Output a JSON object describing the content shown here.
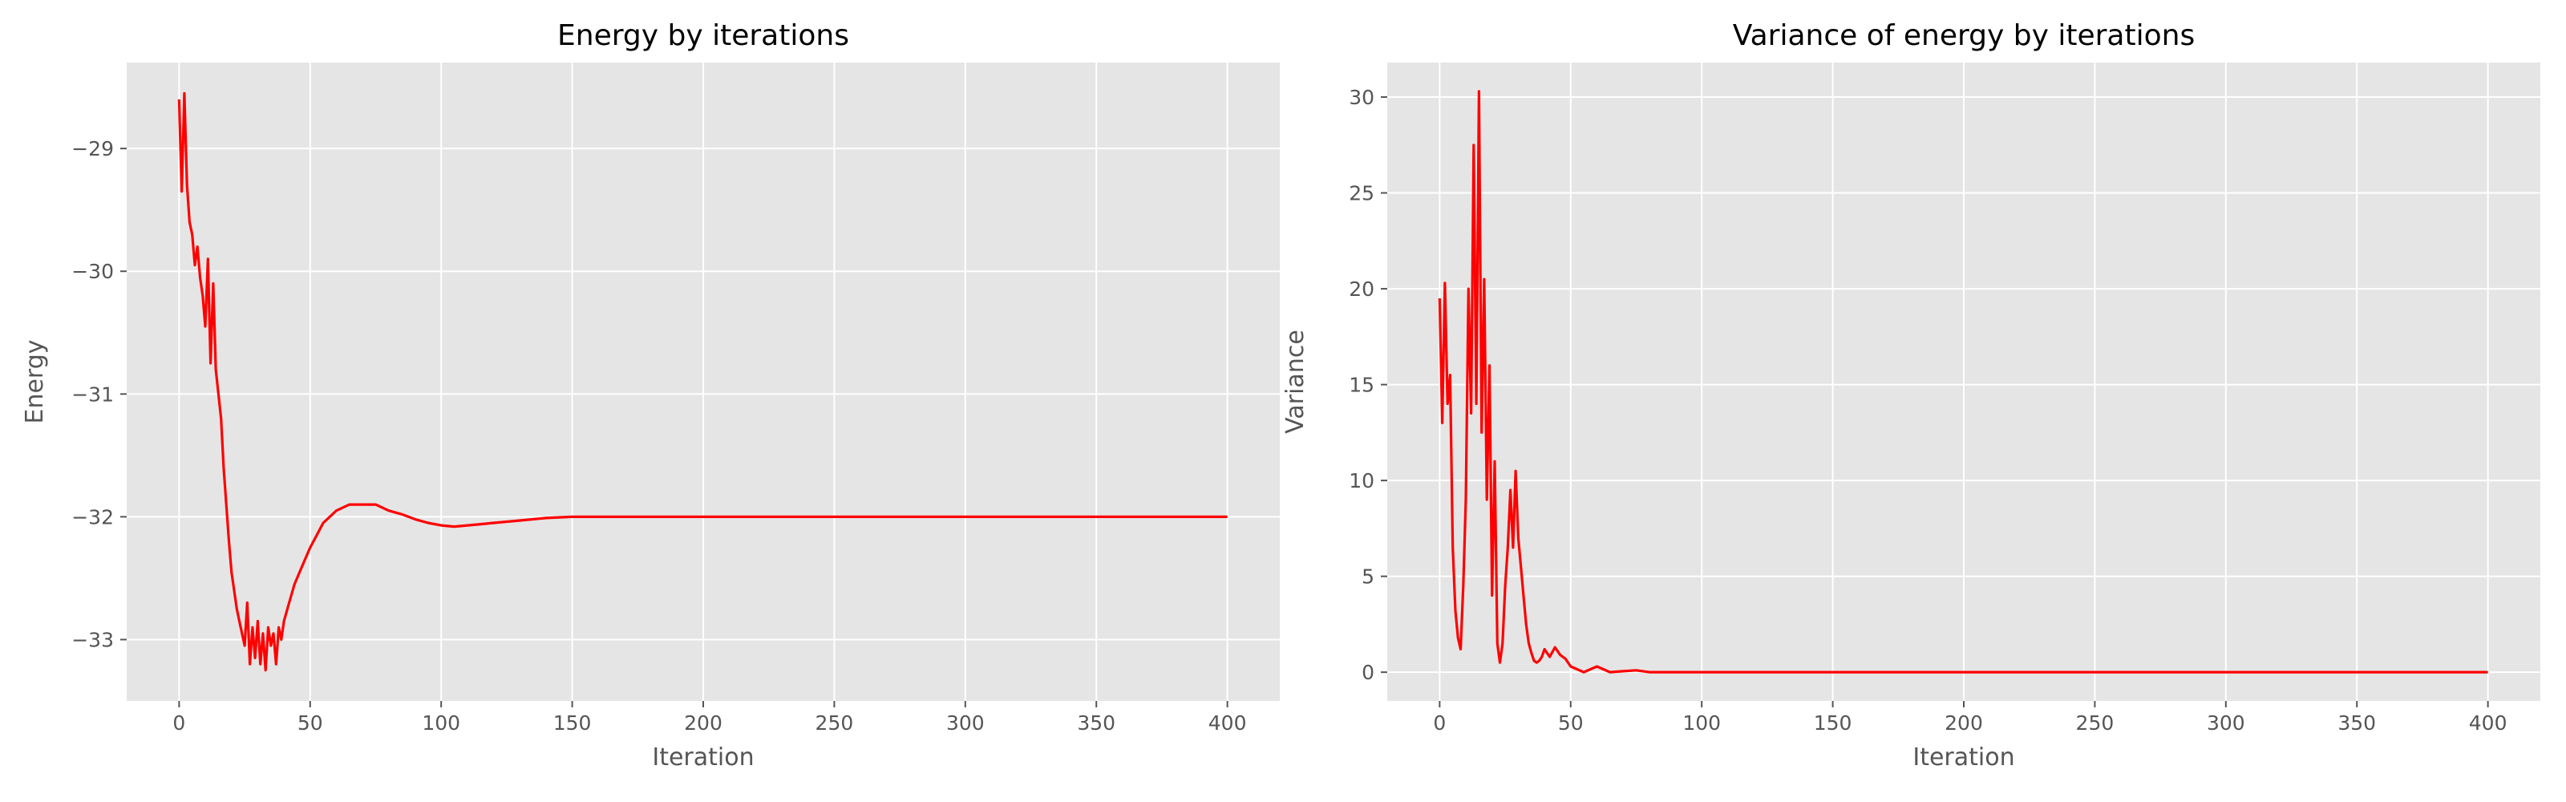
{
  "chart_data": [
    {
      "type": "line",
      "title": "Energy by iterations",
      "xlabel": "Iteration",
      "ylabel": "Energy",
      "xlim": [
        -20,
        420
      ],
      "ylim": [
        -33.5,
        -28.3
      ],
      "xticks": [
        0,
        50,
        100,
        150,
        200,
        250,
        300,
        350,
        400
      ],
      "yticks": [
        -33,
        -32,
        -31,
        -30,
        -29
      ],
      "ytick_labels": [
        "−33",
        "−32",
        "−31",
        "−30",
        "−29"
      ],
      "grid": true,
      "line_color": "#ff0000",
      "x": [
        0,
        1,
        2,
        3,
        4,
        5,
        6,
        7,
        8,
        9,
        10,
        11,
        12,
        13,
        14,
        15,
        16,
        17,
        18,
        19,
        20,
        21,
        22,
        23,
        24,
        25,
        26,
        27,
        28,
        29,
        30,
        31,
        32,
        33,
        34,
        35,
        36,
        37,
        38,
        39,
        40,
        42,
        44,
        46,
        48,
        50,
        55,
        60,
        65,
        70,
        75,
        80,
        85,
        90,
        95,
        100,
        105,
        110,
        115,
        120,
        130,
        140,
        150,
        175,
        200,
        250,
        300,
        350,
        400
      ],
      "y": [
        -28.6,
        -29.35,
        -28.55,
        -29.3,
        -29.6,
        -29.7,
        -29.95,
        -29.8,
        -30.05,
        -30.2,
        -30.45,
        -29.9,
        -30.75,
        -30.1,
        -30.8,
        -31.0,
        -31.2,
        -31.6,
        -31.9,
        -32.2,
        -32.45,
        -32.6,
        -32.75,
        -32.85,
        -32.95,
        -33.05,
        -32.7,
        -33.2,
        -32.9,
        -33.15,
        -32.85,
        -33.2,
        -32.95,
        -33.25,
        -32.9,
        -33.05,
        -32.95,
        -33.2,
        -32.9,
        -33.0,
        -32.85,
        -32.7,
        -32.55,
        -32.45,
        -32.35,
        -32.25,
        -32.05,
        -31.95,
        -31.9,
        -31.9,
        -31.9,
        -31.95,
        -31.98,
        -32.02,
        -32.05,
        -32.07,
        -32.08,
        -32.07,
        -32.06,
        -32.05,
        -32.03,
        -32.01,
        -32.0,
        -32.0,
        -32.0,
        -32.0,
        -32.0,
        -32.0,
        -32.0
      ]
    },
    {
      "type": "line",
      "title": "Variance of energy by iterations",
      "xlabel": "Iteration",
      "ylabel": "Variance",
      "xlim": [
        -20,
        420
      ],
      "ylim": [
        -1.5,
        31.8
      ],
      "xticks": [
        0,
        50,
        100,
        150,
        200,
        250,
        300,
        350,
        400
      ],
      "yticks": [
        0,
        5,
        10,
        15,
        20,
        25,
        30
      ],
      "ytick_labels": [
        "0",
        "5",
        "10",
        "15",
        "20",
        "25",
        "30"
      ],
      "grid": true,
      "line_color": "#ff0000",
      "x": [
        0,
        1,
        2,
        3,
        4,
        5,
        6,
        7,
        8,
        9,
        10,
        11,
        12,
        13,
        14,
        15,
        16,
        17,
        18,
        19,
        20,
        21,
        22,
        23,
        24,
        25,
        26,
        27,
        28,
        29,
        30,
        31,
        32,
        33,
        34,
        35,
        36,
        37,
        38,
        39,
        40,
        42,
        44,
        46,
        48,
        50,
        55,
        60,
        65,
        70,
        75,
        80,
        85,
        90,
        95,
        100,
        110,
        120,
        150,
        200,
        250,
        300,
        350,
        400
      ],
      "y": [
        19.5,
        13.0,
        20.3,
        14.0,
        15.5,
        6.5,
        3.2,
        1.8,
        1.2,
        4.5,
        9.0,
        20.0,
        13.5,
        27.5,
        14.0,
        30.3,
        12.5,
        20.5,
        9.0,
        16.0,
        4.0,
        11.0,
        1.5,
        0.5,
        1.5,
        4.5,
        6.5,
        9.5,
        6.5,
        10.5,
        7.0,
        5.5,
        4.0,
        2.5,
        1.5,
        1.0,
        0.6,
        0.5,
        0.6,
        0.8,
        1.2,
        0.8,
        1.3,
        0.9,
        0.7,
        0.3,
        0.0,
        0.3,
        0.0,
        0.05,
        0.1,
        0.0,
        0.0,
        0.0,
        0.0,
        0.0,
        0.0,
        0.0,
        0.0,
        0.0,
        0.0,
        0.0,
        0.0,
        0.0
      ]
    }
  ]
}
